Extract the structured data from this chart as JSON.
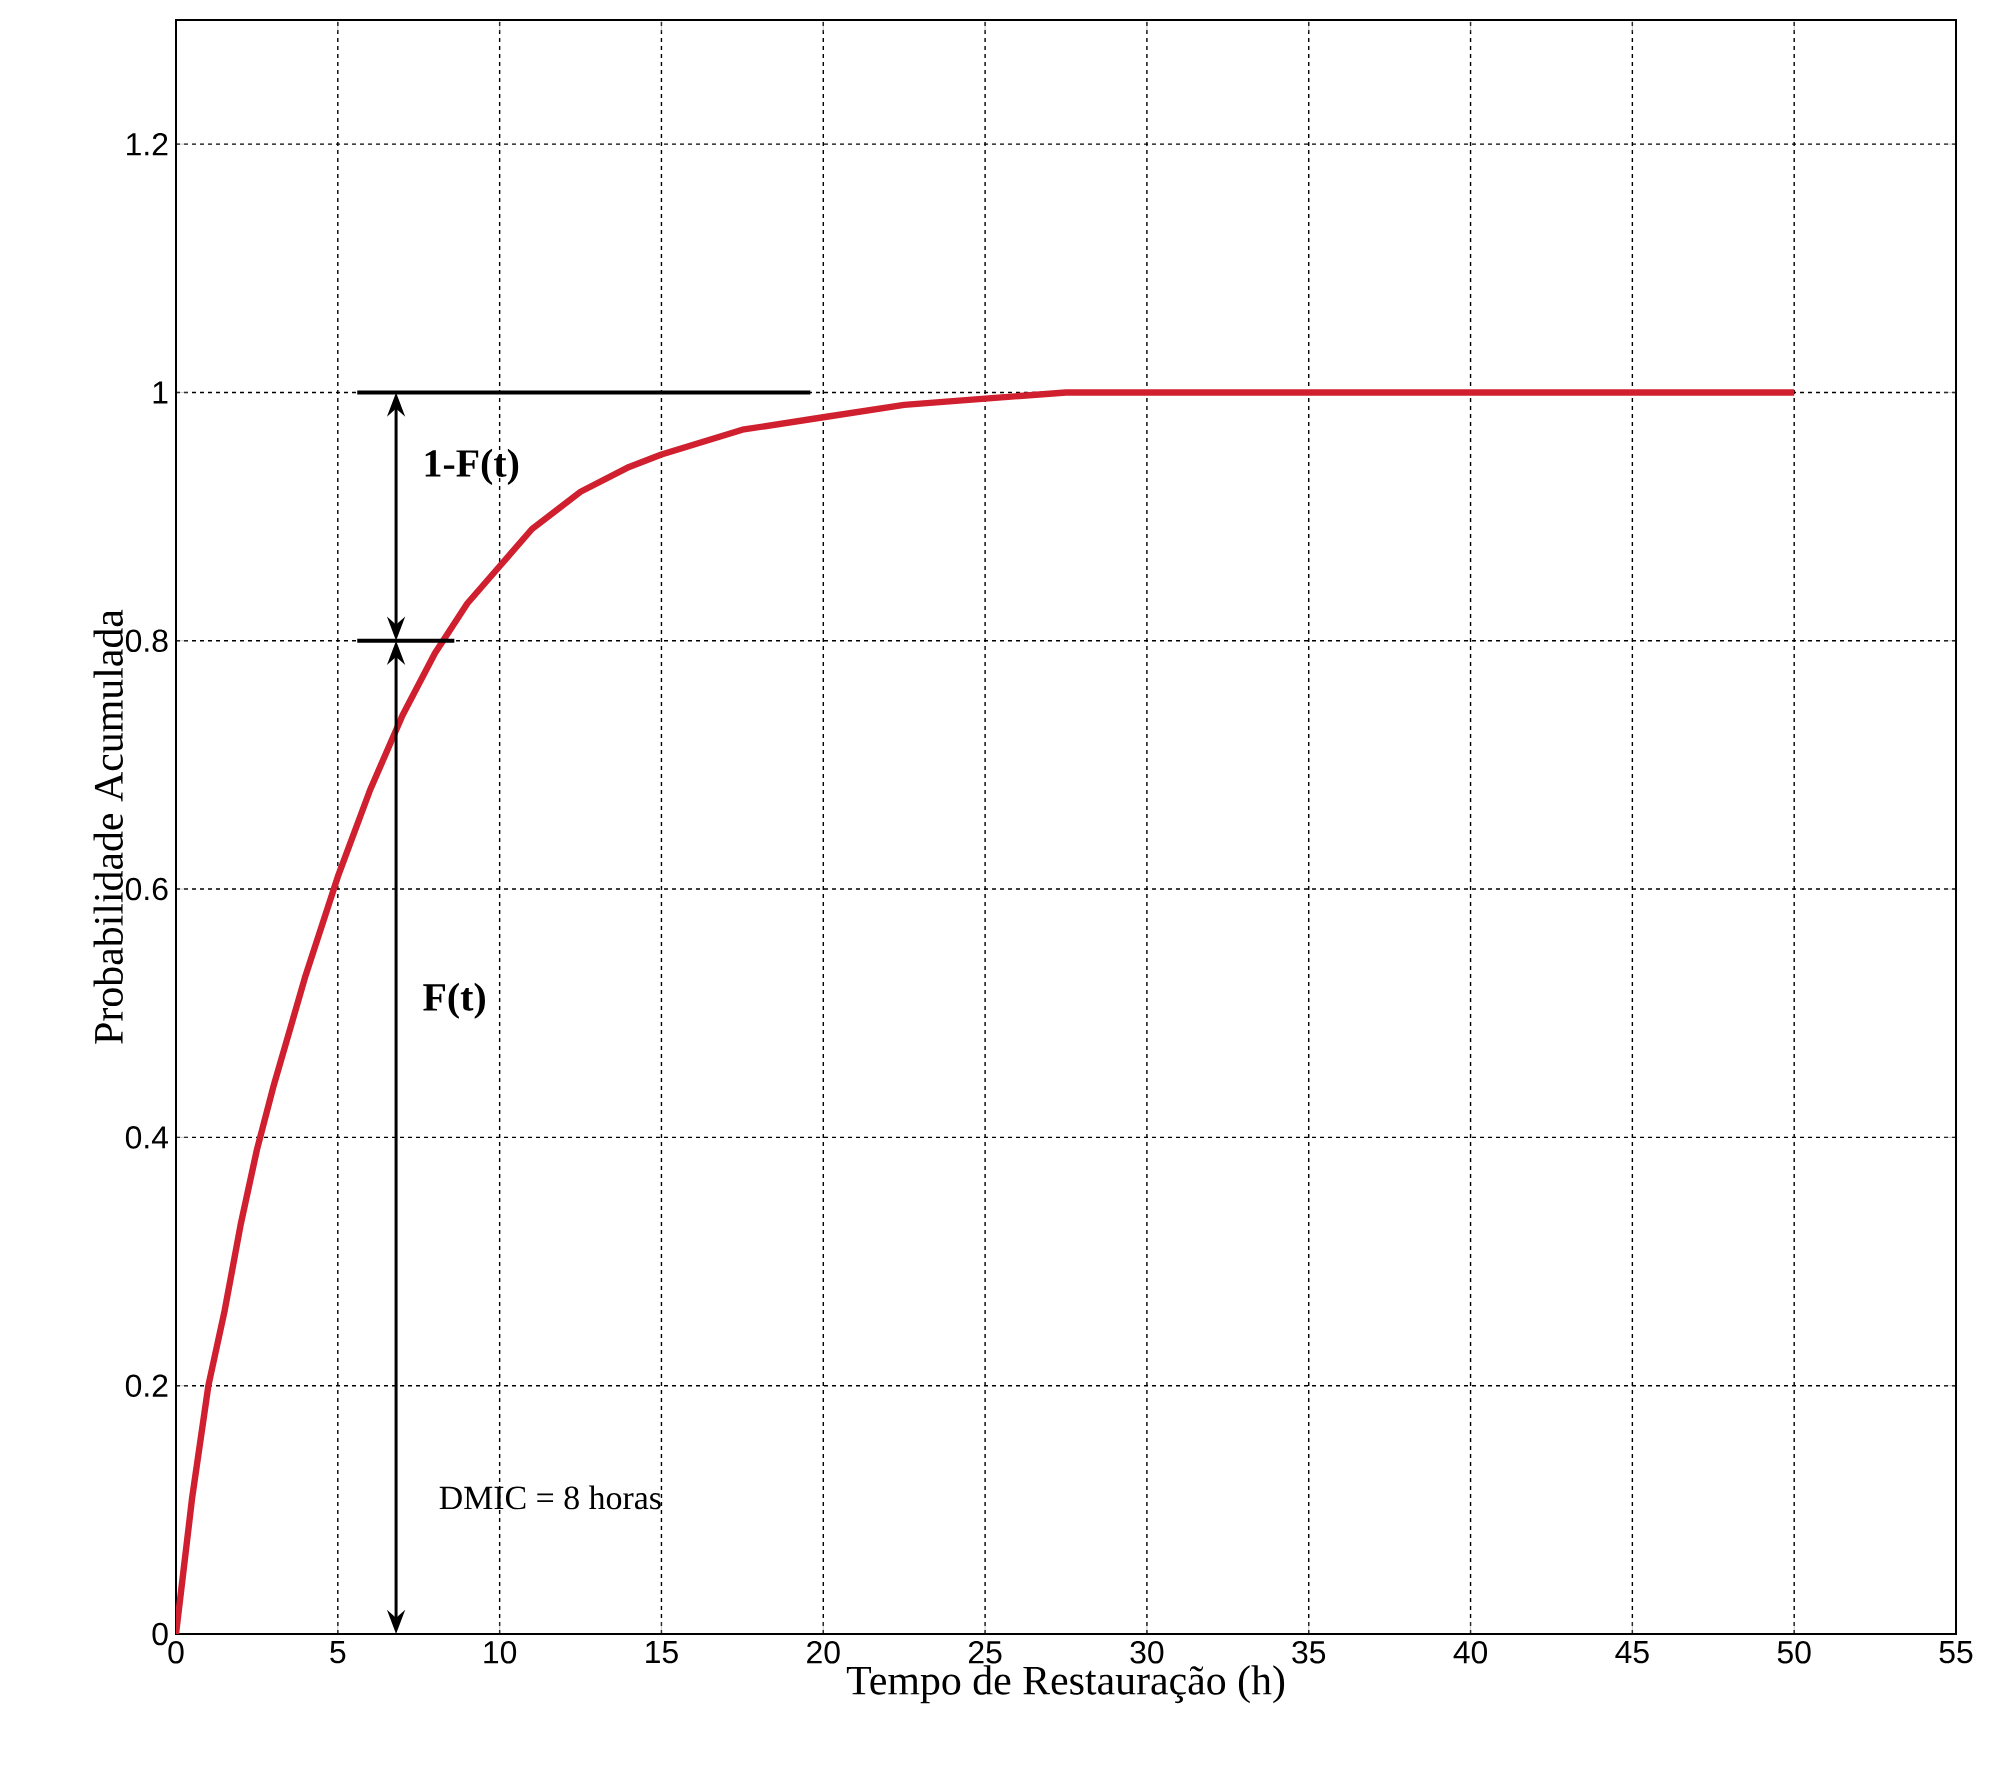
{
  "chart_data": {
    "type": "line",
    "xlabel": "Tempo de Restauração (h)",
    "ylabel": "Probabilidade Acumulada",
    "x": [
      0,
      0.5,
      1,
      1.5,
      2,
      2.5,
      3,
      4,
      5,
      6,
      7,
      8,
      9,
      10,
      11,
      12.5,
      14,
      15,
      17.5,
      20,
      22.5,
      25,
      27.5,
      30,
      35,
      40,
      45,
      50
    ],
    "series": [
      {
        "color": "#d0202f",
        "values": [
          0,
          0.11,
          0.2,
          0.26,
          0.33,
          0.39,
          0.44,
          0.53,
          0.61,
          0.68,
          0.74,
          0.79,
          0.83,
          0.86,
          0.89,
          0.92,
          0.94,
          0.95,
          0.97,
          0.98,
          0.99,
          0.995,
          1,
          1,
          1,
          1,
          1,
          1
        ]
      }
    ],
    "xlim": [
      0,
      55
    ],
    "ylim": [
      0,
      1.3
    ],
    "xticks": [
      0,
      5,
      10,
      15,
      20,
      25,
      30,
      35,
      40,
      45,
      50,
      55
    ],
    "yticks": [
      0,
      0.2,
      0.4,
      0.6,
      0.8,
      1,
      1.2
    ],
    "grid": true,
    "line_style": "solid",
    "marker": "none",
    "annotations": [
      "1-F(t)",
      "F(t)",
      "DMIC = 8 horas"
    ]
  }
}
